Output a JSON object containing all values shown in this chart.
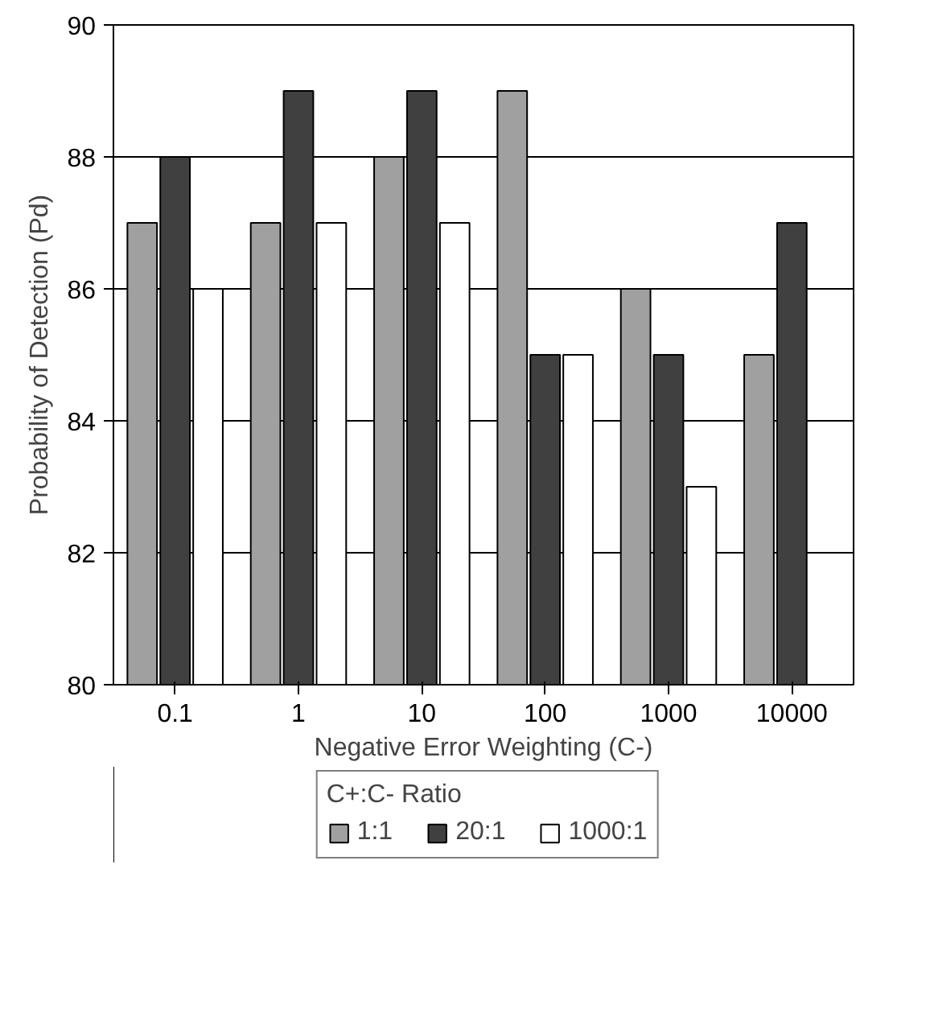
{
  "chart_data": {
    "type": "bar",
    "xlabel": "Negative Error Weighting (C-)",
    "ylabel": "Probability of Detection (Pd)",
    "legend_title": "C+:C- Ratio",
    "categories": [
      "0.1",
      "1",
      "10",
      "100",
      "1000",
      "10000"
    ],
    "series": [
      {
        "name": "1:1",
        "color": "#a0a0a0",
        "values": [
          87,
          87,
          88,
          89,
          86,
          85
        ]
      },
      {
        "name": "20:1",
        "color": "#404040",
        "values": [
          88,
          89,
          89,
          85,
          85,
          87
        ]
      },
      {
        "name": "1000:1",
        "color": "#ffffff",
        "values": [
          86,
          87,
          87,
          85,
          83,
          null
        ]
      }
    ],
    "ylim": [
      80,
      90
    ],
    "yticks": [
      80,
      82,
      84,
      86,
      88,
      90
    ],
    "grid": "y",
    "legend": "bottom"
  }
}
